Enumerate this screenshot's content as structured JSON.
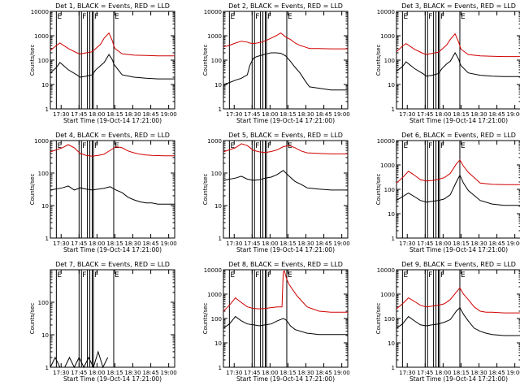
{
  "figure": {
    "x_tick_labels": [
      "17:30",
      "17:45",
      "18:00",
      "18:15",
      "18:30",
      "18:45",
      "19:00"
    ],
    "xlabel": "Start Time (19-Oct-14 17:21:00)",
    "ylabel": "Counts/sec",
    "flag_letters": [
      "E",
      "F",
      "F",
      "E"
    ],
    "colors": {
      "events": "#000000",
      "lld": "#d00000"
    }
  },
  "chart_data": [
    {
      "type": "line",
      "title": "Det 1, BLACK = Events, RED = LLD",
      "ylim": [
        1,
        10000
      ],
      "yscale": "log",
      "x_unit": "minutes after 17:21",
      "xlim": [
        0,
        104
      ],
      "y_tick_labels": [
        "1",
        "10",
        "100",
        "1000",
        "10000"
      ],
      "flag_lines": [
        5,
        24,
        26,
        31,
        33,
        35,
        36,
        53
      ],
      "series": [
        {
          "name": "Events",
          "color": "#000000",
          "x": [
            0,
            5,
            8,
            15,
            22,
            25,
            30,
            35,
            38,
            42,
            45,
            49,
            52,
            53,
            54,
            60,
            70,
            80,
            90,
            104
          ],
          "values": [
            30,
            50,
            80,
            40,
            25,
            20,
            22,
            25,
            40,
            60,
            80,
            170,
            100,
            70,
            60,
            25,
            20,
            18,
            17,
            17
          ]
        },
        {
          "name": "LLD",
          "color": "#d00000",
          "x": [
            0,
            5,
            8,
            15,
            22,
            25,
            30,
            35,
            38,
            42,
            45,
            49,
            52,
            53,
            54,
            60,
            70,
            80,
            90,
            104
          ],
          "values": [
            250,
            400,
            500,
            300,
            200,
            180,
            200,
            220,
            300,
            450,
            800,
            1300,
            600,
            400,
            300,
            180,
            160,
            155,
            150,
            150
          ]
        }
      ]
    },
    {
      "type": "line",
      "title": "Det 2, BLACK = Events, RED = LLD",
      "ylim": [
        1,
        10000
      ],
      "yscale": "log",
      "x_unit": "minutes after 17:21",
      "xlim": [
        0,
        104
      ],
      "y_tick_labels": [
        "1",
        "10",
        "100",
        "1000",
        "10000"
      ],
      "flag_lines": [
        5,
        24,
        26,
        31,
        33,
        35,
        36,
        53
      ],
      "series": [
        {
          "name": "Events",
          "color": "#000000",
          "x": [
            0,
            5,
            10,
            15,
            20,
            22,
            25,
            28,
            32,
            36,
            40,
            44,
            48,
            52,
            56,
            60,
            64,
            68,
            72,
            80,
            90,
            104
          ],
          "values": [
            10,
            12,
            15,
            18,
            25,
            60,
            120,
            140,
            160,
            180,
            200,
            200,
            190,
            150,
            90,
            50,
            30,
            15,
            8,
            7,
            6,
            6
          ]
        },
        {
          "name": "LLD",
          "color": "#d00000",
          "x": [
            0,
            5,
            10,
            15,
            20,
            22,
            25,
            28,
            32,
            36,
            40,
            44,
            48,
            52,
            56,
            60,
            64,
            68,
            72,
            80,
            90,
            104
          ],
          "values": [
            350,
            400,
            500,
            600,
            550,
            500,
            480,
            500,
            550,
            650,
            800,
            1000,
            1300,
            900,
            700,
            500,
            400,
            350,
            300,
            300,
            290,
            290
          ]
        }
      ]
    },
    {
      "type": "line",
      "title": "Det 3, BLACK = Events, RED = LLD",
      "ylim": [
        1,
        10000
      ],
      "yscale": "log",
      "x_unit": "minutes after 17:21",
      "xlim": [
        0,
        104
      ],
      "y_tick_labels": [
        "1",
        "10",
        "100",
        "1000",
        "10000"
      ],
      "flag_lines": [
        5,
        24,
        26,
        31,
        33,
        35,
        36,
        53
      ],
      "series": [
        {
          "name": "Events",
          "color": "#000000",
          "x": [
            0,
            5,
            8,
            15,
            22,
            25,
            30,
            35,
            38,
            42,
            45,
            49,
            52,
            53,
            54,
            60,
            70,
            80,
            90,
            104
          ],
          "values": [
            35,
            55,
            85,
            45,
            28,
            22,
            24,
            28,
            45,
            70,
            90,
            200,
            110,
            75,
            60,
            30,
            24,
            22,
            21,
            21
          ]
        },
        {
          "name": "LLD",
          "color": "#d00000",
          "x": [
            0,
            5,
            8,
            15,
            22,
            25,
            30,
            35,
            38,
            42,
            45,
            49,
            52,
            53,
            54,
            60,
            70,
            80,
            90,
            104
          ],
          "values": [
            220,
            380,
            480,
            280,
            190,
            170,
            190,
            210,
            280,
            420,
            700,
            1200,
            550,
            380,
            280,
            170,
            150,
            145,
            140,
            140
          ]
        }
      ]
    },
    {
      "type": "line",
      "title": "Det 4, BLACK = Events, RED = LLD",
      "ylim": [
        1,
        1000
      ],
      "yscale": "log",
      "x_unit": "minutes after 17:21",
      "xlim": [
        0,
        104
      ],
      "y_tick_labels": [
        "1",
        "10",
        "100",
        "1000"
      ],
      "flag_lines": [
        5,
        24,
        26,
        31,
        33,
        35,
        36,
        53
      ],
      "series": [
        {
          "name": "Events",
          "color": "#000000",
          "x": [
            0,
            10,
            15,
            20,
            25,
            30,
            35,
            40,
            45,
            50,
            55,
            60,
            65,
            70,
            75,
            80,
            85,
            90,
            95,
            104
          ],
          "values": [
            30,
            35,
            40,
            30,
            35,
            32,
            30,
            32,
            34,
            38,
            30,
            25,
            18,
            15,
            13,
            12,
            12,
            11,
            11,
            11
          ]
        },
        {
          "name": "LLD",
          "color": "#d00000",
          "x": [
            0,
            10,
            15,
            20,
            25,
            30,
            35,
            40,
            45,
            50,
            55,
            60,
            65,
            70,
            75,
            80,
            85,
            90,
            95,
            104
          ],
          "values": [
            450,
            600,
            750,
            600,
            400,
            350,
            330,
            350,
            380,
            500,
            650,
            600,
            480,
            420,
            380,
            360,
            350,
            345,
            340,
            340
          ]
        }
      ]
    },
    {
      "type": "line",
      "title": "Det 5, BLACK = Events, RED = LLD",
      "ylim": [
        1,
        1000
      ],
      "yscale": "log",
      "x_unit": "minutes after 17:21",
      "xlim": [
        0,
        104
      ],
      "y_tick_labels": [
        "1",
        "10",
        "100",
        "1000"
      ],
      "flag_lines": [
        5,
        24,
        26,
        31,
        33,
        35,
        36,
        53
      ],
      "series": [
        {
          "name": "Events",
          "color": "#000000",
          "x": [
            0,
            10,
            15,
            20,
            25,
            30,
            35,
            40,
            45,
            50,
            55,
            60,
            65,
            70,
            80,
            90,
            104
          ],
          "values": [
            60,
            70,
            80,
            65,
            60,
            62,
            70,
            75,
            90,
            120,
            80,
            55,
            45,
            35,
            32,
            30,
            30
          ]
        },
        {
          "name": "LLD",
          "color": "#d00000",
          "x": [
            0,
            10,
            15,
            20,
            25,
            30,
            35,
            40,
            45,
            50,
            55,
            60,
            65,
            70,
            80,
            90,
            104
          ],
          "values": [
            450,
            600,
            800,
            700,
            500,
            450,
            430,
            460,
            520,
            650,
            700,
            600,
            480,
            420,
            400,
            390,
            390
          ]
        }
      ]
    },
    {
      "type": "line",
      "title": "Det 6, BLACK = Events, RED = LLD",
      "ylim": [
        1,
        10000
      ],
      "yscale": "log",
      "x_unit": "minutes after 17:21",
      "xlim": [
        0,
        104
      ],
      "y_tick_labels": [
        "1",
        "10",
        "100",
        "1000",
        "10000"
      ],
      "flag_lines": [
        5,
        24,
        26,
        31,
        33,
        35,
        36,
        53
      ],
      "series": [
        {
          "name": "Events",
          "color": "#000000",
          "x": [
            0,
            5,
            10,
            15,
            20,
            25,
            30,
            35,
            40,
            45,
            50,
            53,
            56,
            60,
            70,
            80,
            90,
            104
          ],
          "values": [
            35,
            50,
            70,
            50,
            35,
            30,
            32,
            35,
            40,
            60,
            200,
            380,
            180,
            90,
            35,
            25,
            22,
            22
          ]
        },
        {
          "name": "LLD",
          "color": "#d00000",
          "x": [
            0,
            5,
            10,
            15,
            20,
            25,
            30,
            35,
            40,
            45,
            50,
            53,
            56,
            60,
            70,
            80,
            90,
            104
          ],
          "values": [
            180,
            300,
            550,
            380,
            250,
            220,
            230,
            260,
            300,
            450,
            1100,
            1600,
            900,
            500,
            180,
            160,
            155,
            155
          ]
        }
      ]
    },
    {
      "type": "line",
      "title": "Det 7, BLACK = Events, RED = LLD",
      "ylim": [
        1,
        1000
      ],
      "yscale": "log",
      "x_unit": "minutes after 17:21",
      "xlim": [
        0,
        104
      ],
      "y_tick_labels": [
        "1",
        "10",
        "100"
      ],
      "flag_lines": [
        5,
        24,
        26,
        31,
        33,
        35,
        36,
        53
      ],
      "series": [
        {
          "name": "Events",
          "color": "#000000",
          "x": [
            0,
            4,
            8,
            12,
            16,
            20,
            24,
            28,
            32,
            36,
            40,
            44,
            48
          ],
          "values": [
            1,
            2,
            1,
            1,
            2,
            1,
            2,
            1,
            2,
            1,
            3,
            1,
            2
          ]
        }
      ]
    },
    {
      "type": "line",
      "title": "Det 8, BLACK = Events, RED = LLD",
      "ylim": [
        1,
        10000
      ],
      "yscale": "log",
      "x_unit": "minutes after 17:21",
      "xlim": [
        0,
        104
      ],
      "y_tick_labels": [
        "1",
        "10",
        "100",
        "1000",
        "10000"
      ],
      "flag_lines": [
        5,
        24,
        26,
        31,
        33,
        35,
        36,
        53
      ],
      "series": [
        {
          "name": "Events",
          "color": "#000000",
          "x": [
            0,
            5,
            10,
            15,
            20,
            25,
            30,
            35,
            40,
            45,
            50,
            52,
            54,
            56,
            60,
            70,
            80,
            90,
            104
          ],
          "values": [
            40,
            60,
            120,
            80,
            60,
            55,
            50,
            55,
            60,
            80,
            100,
            90,
            70,
            50,
            35,
            25,
            22,
            22,
            22
          ]
        },
        {
          "name": "LLD",
          "color": "#d00000",
          "x": [
            0,
            5,
            10,
            15,
            20,
            25,
            30,
            35,
            40,
            45,
            49,
            50,
            51,
            53,
            55,
            58,
            62,
            70,
            80,
            90,
            104
          ],
          "values": [
            200,
            350,
            700,
            450,
            300,
            260,
            250,
            260,
            280,
            300,
            300,
            8000,
            9000,
            4000,
            2500,
            1500,
            800,
            300,
            200,
            180,
            180
          ]
        }
      ]
    },
    {
      "type": "line",
      "title": "Det 9, BLACK = Events, RED = LLD",
      "ylim": [
        1,
        10000
      ],
      "yscale": "log",
      "x_unit": "minutes after 17:21",
      "xlim": [
        0,
        104
      ],
      "y_tick_labels": [
        "1",
        "10",
        "100",
        "1000",
        "10000"
      ],
      "flag_lines": [
        5,
        24,
        26,
        31,
        33,
        35,
        36,
        53
      ],
      "series": [
        {
          "name": "Events",
          "color": "#000000",
          "x": [
            0,
            5,
            10,
            15,
            20,
            25,
            30,
            35,
            40,
            45,
            50,
            53,
            56,
            60,
            65,
            70,
            75,
            80,
            90,
            104
          ],
          "values": [
            40,
            60,
            120,
            80,
            55,
            50,
            55,
            60,
            70,
            90,
            200,
            280,
            150,
            80,
            40,
            30,
            25,
            22,
            20,
            20
          ]
        },
        {
          "name": "LLD",
          "color": "#d00000",
          "x": [
            0,
            5,
            10,
            15,
            20,
            25,
            30,
            35,
            40,
            45,
            50,
            53,
            56,
            60,
            65,
            70,
            75,
            80,
            90,
            104
          ],
          "values": [
            250,
            400,
            700,
            500,
            350,
            300,
            320,
            350,
            400,
            600,
            1200,
            1800,
            1000,
            600,
            300,
            200,
            180,
            180,
            170,
            170
          ]
        }
      ]
    }
  ]
}
